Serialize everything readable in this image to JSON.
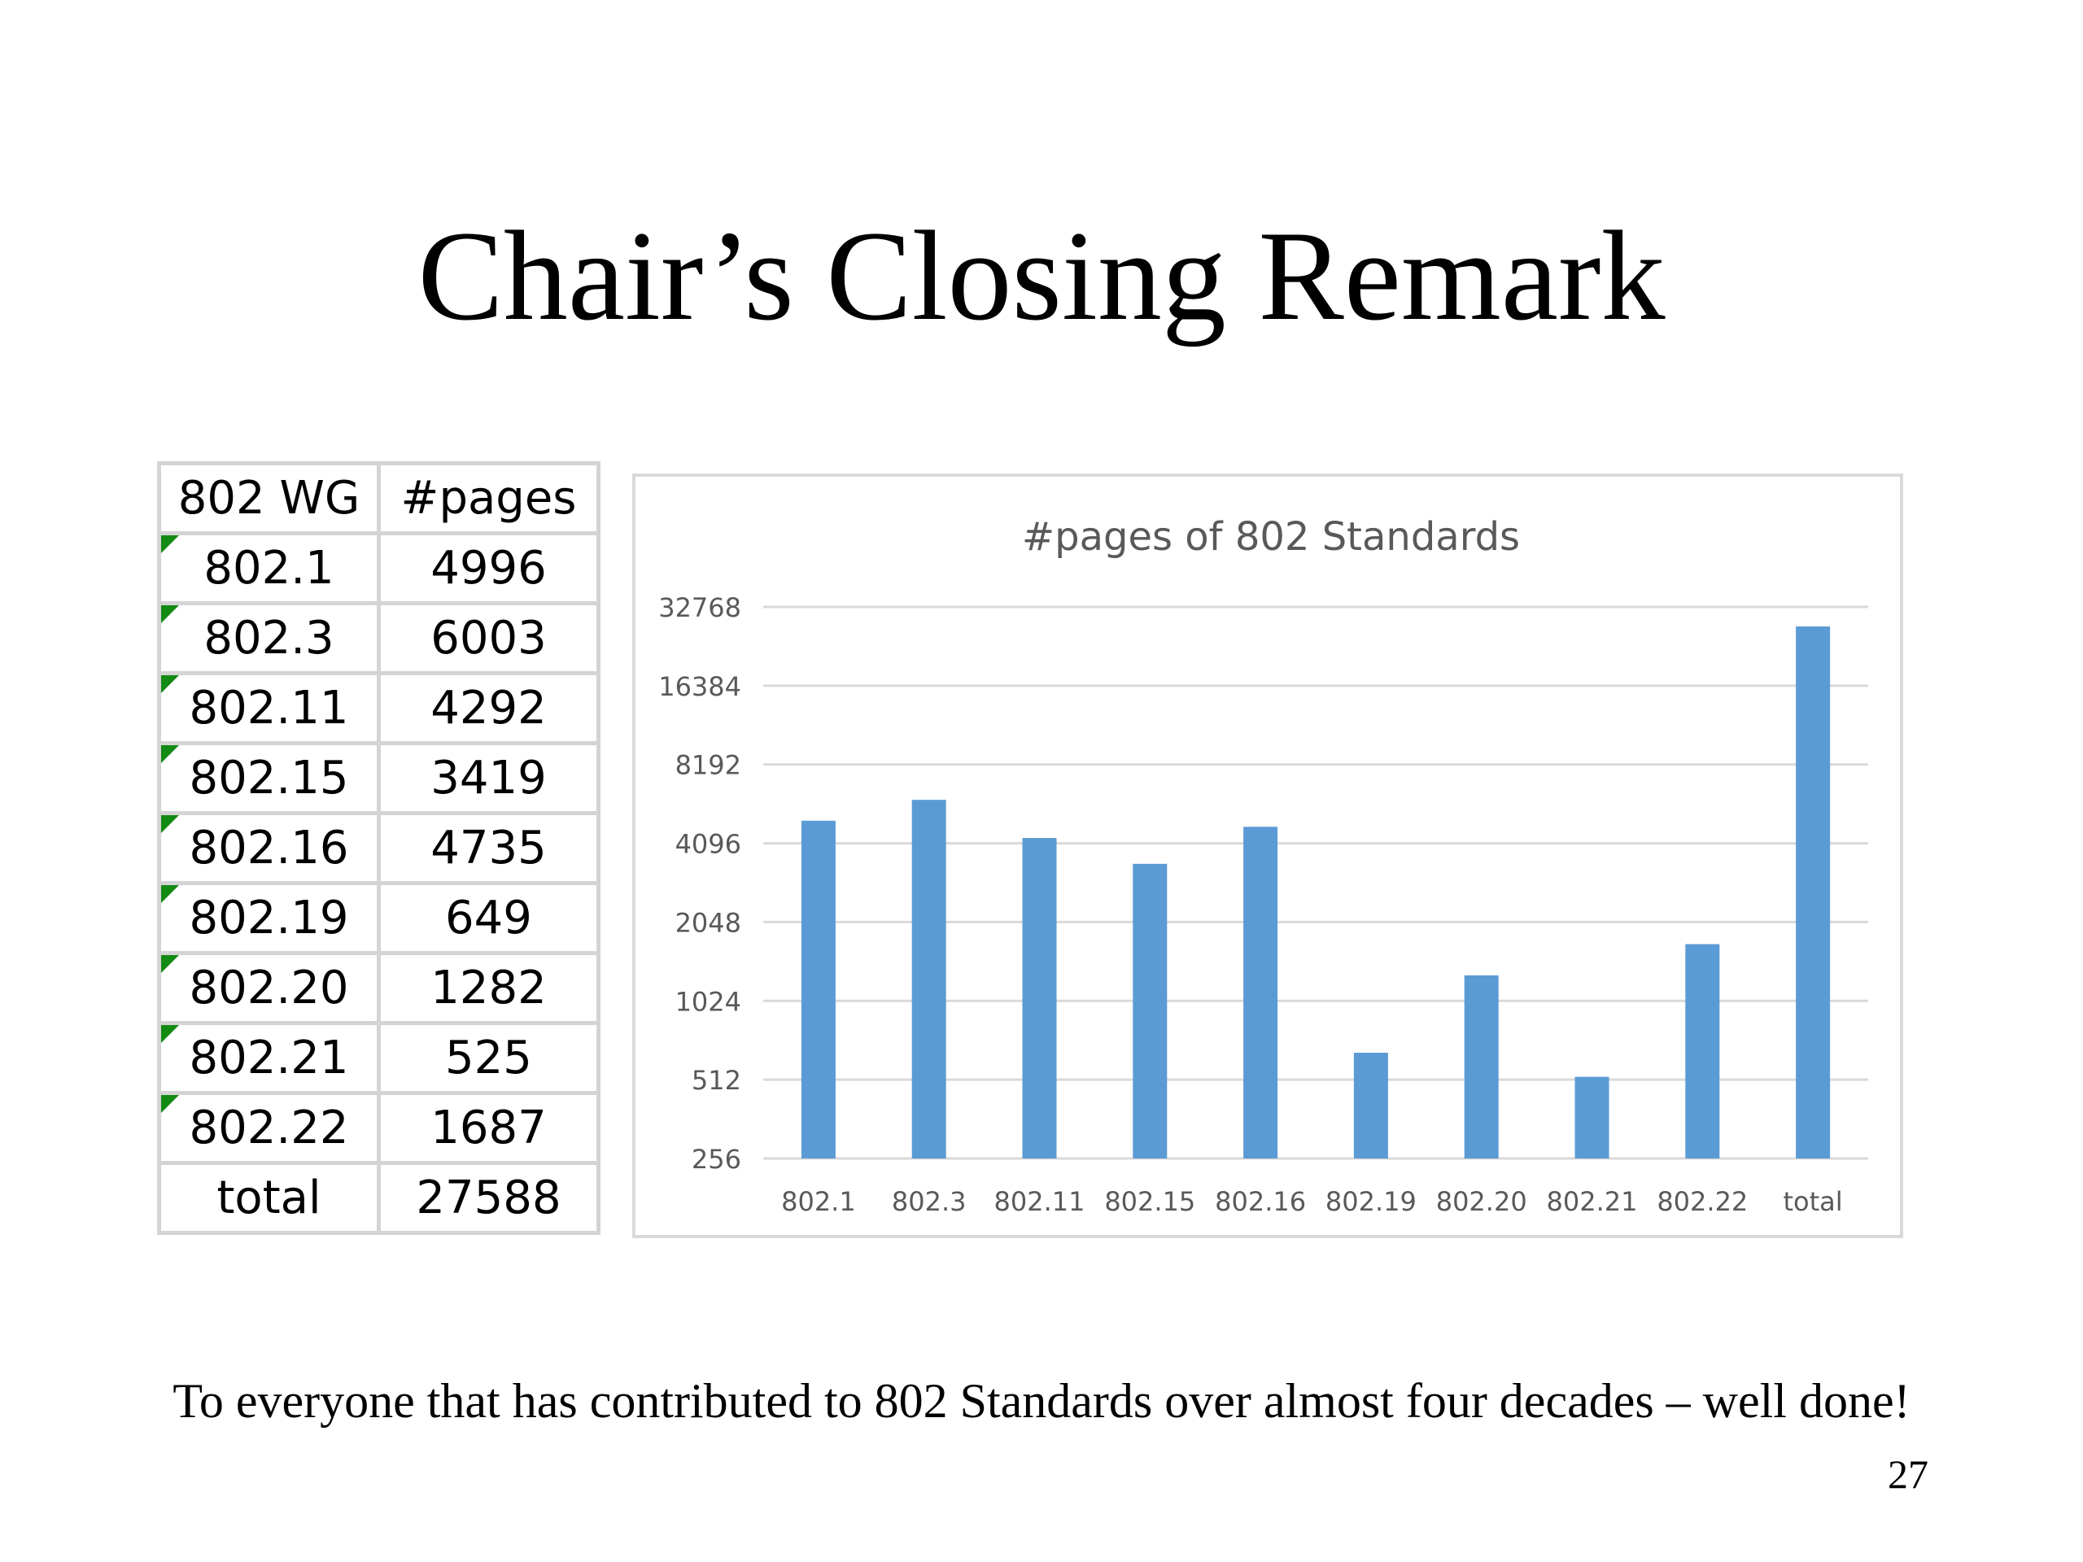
{
  "slide": {
    "title": "Chair’s Closing Remark",
    "footer": "To everyone that has contributed to 802 Standards over almost four decades – well done!",
    "page_number": "27"
  },
  "table": {
    "headers": [
      "802 WG",
      "#pages"
    ],
    "rows": [
      [
        "802.1",
        "4996"
      ],
      [
        "802.3",
        "6003"
      ],
      [
        "802.11",
        "4292"
      ],
      [
        "802.15",
        "3419"
      ],
      [
        "802.16",
        "4735"
      ],
      [
        "802.19",
        "649"
      ],
      [
        "802.20",
        "1282"
      ],
      [
        "802.21",
        "525"
      ],
      [
        "802.22",
        "1687"
      ],
      [
        "total",
        "27588"
      ]
    ]
  },
  "colors": {
    "bar": "#5b9bd5",
    "grid": "#d9d9d9",
    "text": "#595959",
    "flag": "#138a13"
  },
  "chart_data": {
    "type": "bar",
    "title": "#pages of 802 Standards",
    "scale": "log2",
    "ylim": [
      256,
      32768
    ],
    "yticks": [
      256,
      512,
      1024,
      2048,
      4096,
      8192,
      16384,
      32768
    ],
    "categories": [
      "802.1",
      "802.3",
      "802.11",
      "802.15",
      "802.16",
      "802.19",
      "802.20",
      "802.21",
      "802.22",
      "total"
    ],
    "values": [
      4996,
      6003,
      4292,
      3419,
      4735,
      649,
      1282,
      525,
      1687,
      27588
    ],
    "grid": true,
    "legend": "none"
  }
}
